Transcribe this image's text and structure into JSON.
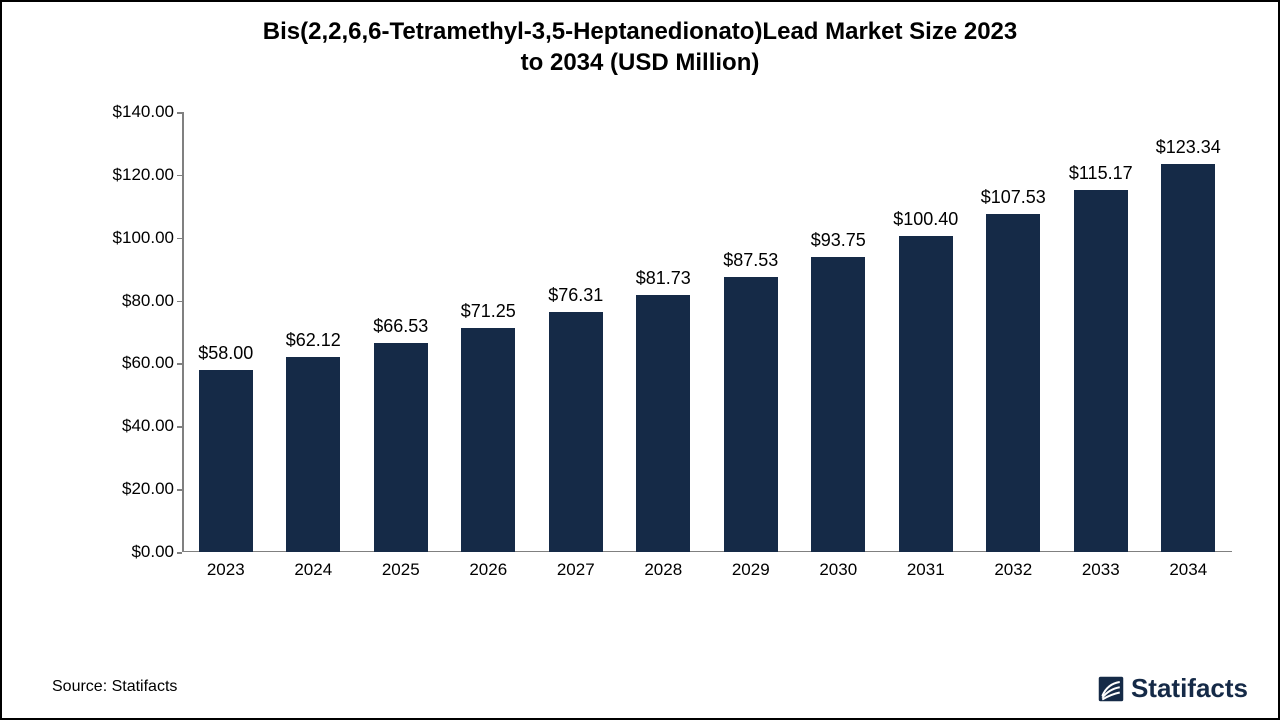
{
  "chart": {
    "type": "bar",
    "title_line1": "Bis(2,2,6,6-Tetramethyl-3,5-Heptanedionato)Lead Market Size 2023",
    "title_line2": "to 2034 (USD Million)",
    "title_fontsize": 24,
    "title_color": "#000000",
    "background_color": "#ffffff",
    "border_color": "#000000",
    "axis_line_color": "#808080",
    "bar_color": "#152a47",
    "bar_width_ratio": 0.62,
    "ylim": [
      0,
      140
    ],
    "ytick_step": 20,
    "y_tick_labels": [
      "$0.00",
      "$20.00",
      "$40.00",
      "$60.00",
      "$80.00",
      "$100.00",
      "$120.00",
      "$140.00"
    ],
    "axis_label_fontsize": 17,
    "value_label_fontsize": 18,
    "categories": [
      "2023",
      "2024",
      "2025",
      "2026",
      "2027",
      "2028",
      "2029",
      "2030",
      "2031",
      "2032",
      "2033",
      "2034"
    ],
    "values": [
      58.0,
      62.12,
      66.53,
      71.25,
      76.31,
      81.73,
      87.53,
      93.75,
      100.4,
      107.53,
      115.17,
      123.34
    ],
    "value_labels": [
      "$58.00",
      "$62.12",
      "$66.53",
      "$71.25",
      "$76.31",
      "$81.73",
      "$87.53",
      "$93.75",
      "$100.40",
      "$107.53",
      "$115.17",
      "$123.34"
    ]
  },
  "footer": {
    "source_text": "Source: Statifacts",
    "source_fontsize": 16,
    "brand_text": "Statifacts",
    "brand_fontsize": 26,
    "brand_color": "#152a47"
  }
}
